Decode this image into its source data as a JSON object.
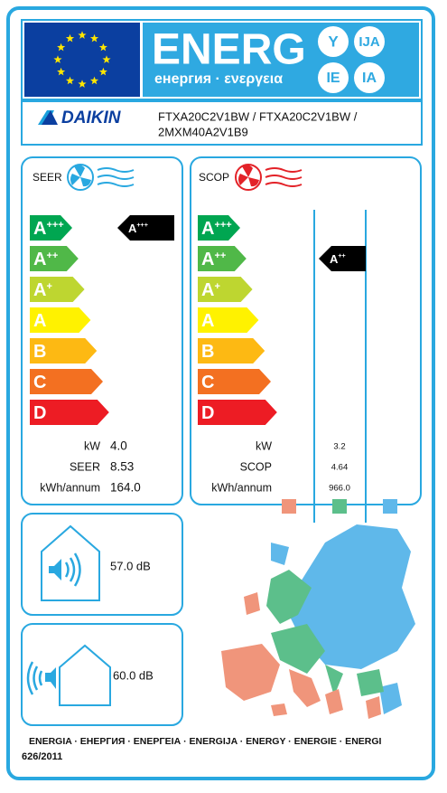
{
  "header": {
    "title": "ENERG",
    "subtitle": "енергия · ενεργεια",
    "suffixes": [
      "Y",
      "IJA",
      "IE",
      "IA"
    ]
  },
  "supplier": {
    "brand": "DAIKIN",
    "model_lines": [
      "FTXA20C2V1BW / FTXA20C2V1BW /",
      "2MXM40A2V1B9"
    ]
  },
  "classes": [
    {
      "letter": "A",
      "sup": "+++"
    },
    {
      "letter": "A",
      "sup": "++"
    },
    {
      "letter": "A",
      "sup": "+"
    },
    {
      "letter": "A"
    },
    {
      "letter": "B"
    },
    {
      "letter": "C"
    },
    {
      "letter": "D"
    }
  ],
  "seer": {
    "label": "SEER",
    "rating": {
      "letter": "A",
      "sup": "+++"
    },
    "rows": [
      [
        "kW",
        "4.0"
      ],
      [
        "SEER",
        "8.53"
      ],
      [
        "kWh/annum",
        "164.0"
      ]
    ]
  },
  "scop": {
    "label": "SCOP",
    "rating": {
      "letter": "A",
      "sup": "++"
    },
    "rows": [
      [
        "kW",
        "3.2"
      ],
      [
        "SCOP",
        "4.64"
      ],
      [
        "kWh/annum",
        "966.0"
      ]
    ]
  },
  "noise": {
    "indoor": "57.0 dB",
    "outdoor": "60.0 dB"
  },
  "footer": {
    "languages": "ENERGIA · ЕНЕРГИЯ · ΕΝΕΡΓΕΙΑ · ENERGIJA · ENERGY · ENERGIE · ENERGI",
    "regulation": "626/2011"
  }
}
